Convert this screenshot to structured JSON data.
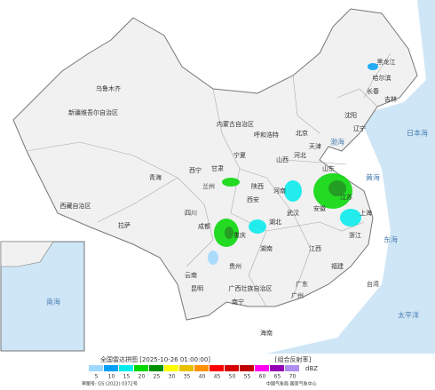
{
  "legend": {
    "title": "全国雷达拼图 [2025-10-26 01:00:00]",
    "product": "[组合反射率]",
    "unit": "dBZ",
    "items": [
      {
        "value": 5,
        "color": "#9fd8ff"
      },
      {
        "value": 10,
        "color": "#01a0f6"
      },
      {
        "value": 15,
        "color": "#00ecec"
      },
      {
        "value": 20,
        "color": "#00d800"
      },
      {
        "value": 25,
        "color": "#019000"
      },
      {
        "value": 30,
        "color": "#ffff00"
      },
      {
        "value": 35,
        "color": "#e7c000"
      },
      {
        "value": 40,
        "color": "#ff9000"
      },
      {
        "value": 45,
        "color": "#ff0000"
      },
      {
        "value": 50,
        "color": "#d60000"
      },
      {
        "value": 55,
        "color": "#c00000"
      },
      {
        "value": 60,
        "color": "#ff00f0"
      },
      {
        "value": 65,
        "color": "#9600b4"
      },
      {
        "value": 70,
        "color": "#ad90f0"
      }
    ]
  },
  "footer": {
    "approval": "审图号: GS (2022) 0372号",
    "agency": "中国气象局 国家气象中心"
  },
  "labels": [
    "新疆维吾尔自治区",
    "乌鲁木齐",
    "西藏自治区",
    "拉萨",
    "青海",
    "西宁",
    "甘肃",
    "兰州",
    "内蒙古自治区",
    "呼和浩特",
    "黑龙江",
    "哈尔滨",
    "吉林",
    "长春",
    "辽宁",
    "沈阳",
    "北京",
    "天津",
    "河北",
    "山西",
    "陕西",
    "西安",
    "宁夏",
    "四川",
    "成都",
    "重庆",
    "贵州",
    "云南",
    "昆明",
    "广西壮族自治区",
    "南宁",
    "广东",
    "广州",
    "湖南",
    "湖北",
    "武汉",
    "河南",
    "山东",
    "江苏",
    "安徽",
    "上海",
    "浙江",
    "江西",
    "福建",
    "台湾",
    "海南",
    "渤海",
    "黄海",
    "东海",
    "日本海",
    "南海",
    "太平洋"
  ]
}
